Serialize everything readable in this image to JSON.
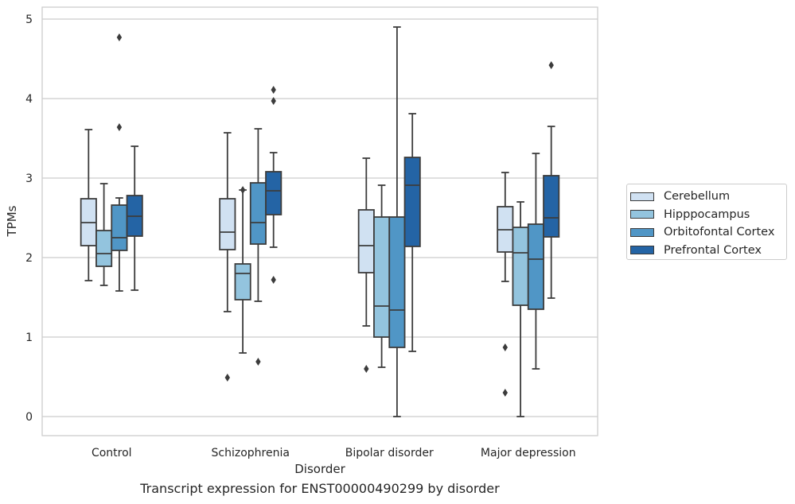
{
  "chart_data": {
    "type": "boxplot",
    "title": "Transcript expression for ENST00000490299 by disorder",
    "xlabel": "Disorder",
    "ylabel": "TPMs",
    "ylim": [
      -0.24,
      5.15
    ],
    "yticks": [
      "0",
      "1",
      "2",
      "3",
      "4",
      "5"
    ],
    "grid": true,
    "legend_position": "right",
    "categories": [
      "Control",
      "Schizophrenia",
      "Bipolar disorder",
      "Major depression"
    ],
    "series": [
      {
        "name": "Cerebellum",
        "color": "#d0e1f2",
        "boxes": [
          {
            "whisker_low": 1.71,
            "q1": 2.15,
            "median": 2.44,
            "q3": 2.74,
            "whisker_high": 3.61,
            "outliers": []
          },
          {
            "whisker_low": 1.32,
            "q1": 2.1,
            "median": 2.32,
            "q3": 2.74,
            "whisker_high": 3.57,
            "outliers": [
              0.49
            ]
          },
          {
            "whisker_low": 1.14,
            "q1": 1.81,
            "median": 2.15,
            "q3": 2.6,
            "whisker_high": 3.25,
            "outliers": [
              0.6
            ]
          },
          {
            "whisker_low": 1.7,
            "q1": 2.07,
            "median": 2.35,
            "q3": 2.64,
            "whisker_high": 3.07,
            "outliers": [
              0.87,
              0.3
            ]
          }
        ]
      },
      {
        "name": "Hipppocampus",
        "color": "#93c4de",
        "boxes": [
          {
            "whisker_low": 1.65,
            "q1": 1.89,
            "median": 2.05,
            "q3": 2.34,
            "whisker_high": 2.93,
            "outliers": []
          },
          {
            "whisker_low": 0.8,
            "q1": 1.47,
            "median": 1.8,
            "q3": 1.92,
            "whisker_high": 2.85,
            "outliers": [
              2.85
            ]
          },
          {
            "whisker_low": 0.62,
            "q1": 1.0,
            "median": 1.39,
            "q3": 2.51,
            "whisker_high": 2.91,
            "outliers": []
          },
          {
            "whisker_low": 0.0,
            "q1": 1.4,
            "median": 2.06,
            "q3": 2.38,
            "whisker_high": 2.7,
            "outliers": []
          }
        ]
      },
      {
        "name": "Orbitofontal Cortex",
        "color": "#5096c6",
        "boxes": [
          {
            "whisker_low": 1.58,
            "q1": 2.09,
            "median": 2.25,
            "q3": 2.66,
            "whisker_high": 2.75,
            "outliers": [
              4.77,
              3.64
            ]
          },
          {
            "whisker_low": 1.45,
            "q1": 2.17,
            "median": 2.44,
            "q3": 2.94,
            "whisker_high": 3.62,
            "outliers": [
              0.69
            ]
          },
          {
            "whisker_low": 0.0,
            "q1": 0.87,
            "median": 1.34,
            "q3": 2.51,
            "whisker_high": 4.9,
            "outliers": []
          },
          {
            "whisker_low": 0.6,
            "q1": 1.35,
            "median": 1.98,
            "q3": 2.42,
            "whisker_high": 3.31,
            "outliers": []
          }
        ]
      },
      {
        "name": "Prefrontal Cortex",
        "color": "#2464a5",
        "boxes": [
          {
            "whisker_low": 1.59,
            "q1": 2.27,
            "median": 2.52,
            "q3": 2.78,
            "whisker_high": 3.4,
            "outliers": []
          },
          {
            "whisker_low": 2.13,
            "q1": 2.54,
            "median": 2.84,
            "q3": 3.08,
            "whisker_high": 3.32,
            "outliers": [
              4.11,
              3.97,
              1.72
            ]
          },
          {
            "whisker_low": 0.82,
            "q1": 2.14,
            "median": 2.91,
            "q3": 3.26,
            "whisker_high": 3.81,
            "outliers": []
          },
          {
            "whisker_low": 1.49,
            "q1": 2.26,
            "median": 2.5,
            "q3": 3.03,
            "whisker_high": 3.65,
            "outliers": [
              4.42
            ]
          }
        ]
      }
    ]
  }
}
